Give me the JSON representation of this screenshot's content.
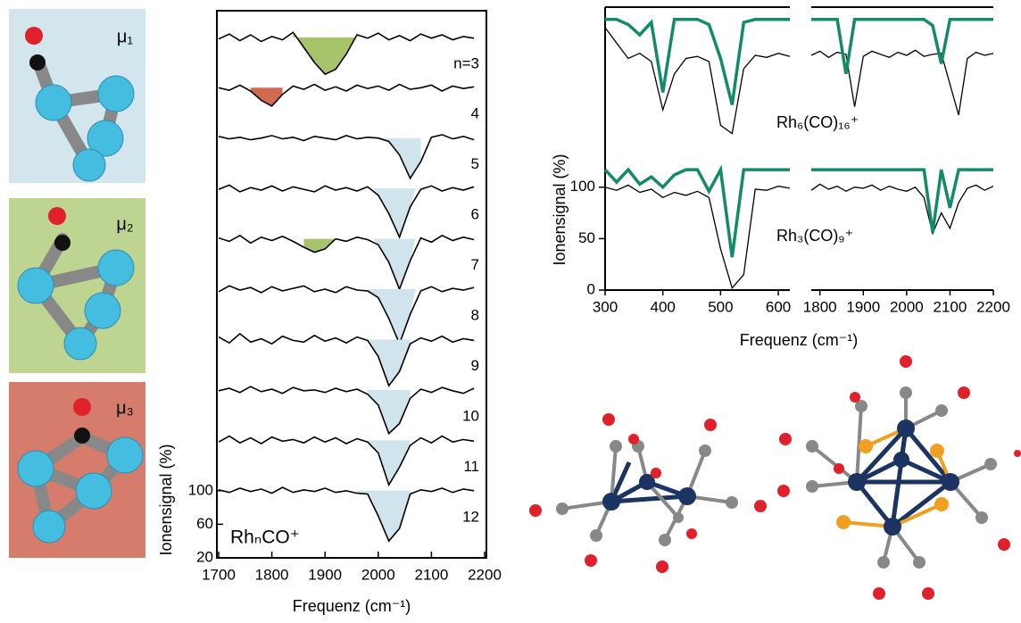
{
  "structures": [
    {
      "label": "μ₁",
      "color": "#d3e6ee"
    },
    {
      "label": "μ₂",
      "color": "#bed592"
    },
    {
      "label": "μ₃",
      "color": "#d67c6c"
    }
  ],
  "chart_data": [
    {
      "type": "line",
      "xlabel": "Frequenz (cm⁻¹)",
      "ylabel": "Ionensignal (%)",
      "annotation": "RhₙCO⁺",
      "xlim": [
        1700,
        2200
      ],
      "xticks": [
        1700,
        1800,
        1900,
        2000,
        2100,
        2200
      ],
      "ylim": [
        20,
        672
      ],
      "yticks": [
        20,
        60,
        100
      ],
      "x": [
        1700,
        1720,
        1740,
        1760,
        1780,
        1800,
        1820,
        1840,
        1860,
        1880,
        1900,
        1920,
        1940,
        1960,
        1980,
        2000,
        2020,
        2040,
        2060,
        2080,
        2100,
        2120,
        2140,
        2160,
        2180
      ],
      "series": [
        {
          "name": "n=3",
          "color": "#000000",
          "values": [
            98,
            104,
            96,
            103,
            95,
            101,
            97,
            106,
            88,
            70,
            56,
            62,
            80,
            103,
            99,
            105,
            97,
            102,
            96,
            104,
            99,
            103,
            97,
            101,
            99
          ],
          "highlights": [
            {
              "range": [
                1840,
                1960
              ],
              "color": "#a8c46a"
            }
          ]
        },
        {
          "name": "4",
          "color": "#000000",
          "values": [
            100,
            97,
            103,
            96,
            85,
            78,
            92,
            102,
            98,
            104,
            97,
            101,
            96,
            103,
            99,
            102,
            97,
            104,
            98,
            100,
            103,
            96,
            102,
            99,
            101
          ],
          "highlights": [
            {
              "range": [
                1760,
                1820
              ],
              "color": "#d06a50"
            }
          ]
        },
        {
          "name": "5",
          "color": "#000000",
          "values": [
            102,
            99,
            101,
            98,
            100,
            103,
            99,
            101,
            97,
            102,
            100,
            98,
            103,
            99,
            101,
            100,
            96,
            80,
            52,
            72,
            101,
            104,
            99,
            102,
            98
          ],
          "highlights": [
            {
              "range": [
                2000,
                2080
              ],
              "color": "#cfe4ec"
            }
          ]
        },
        {
          "name": "6",
          "color": "#000000",
          "values": [
            99,
            104,
            96,
            101,
            98,
            103,
            97,
            102,
            99,
            96,
            103,
            98,
            101,
            97,
            102,
            92,
            70,
            42,
            78,
            99,
            103,
            97,
            101,
            98,
            102
          ],
          "highlights": [
            {
              "range": [
                1990,
                2070
              ],
              "color": "#cfe4ec"
            }
          ]
        },
        {
          "name": "7",
          "color": "#000000",
          "values": [
            101,
            97,
            104,
            95,
            102,
            98,
            103,
            97,
            90,
            84,
            88,
            100,
            97,
            102,
            99,
            93,
            72,
            40,
            74,
            101,
            96,
            104,
            98,
            102,
            99
          ],
          "highlights": [
            {
              "range": [
                1860,
                1920
              ],
              "color": "#a8c46a"
            },
            {
              "range": [
                1990,
                2070
              ],
              "color": "#cfe4ec"
            }
          ]
        },
        {
          "name": "8",
          "color": "#000000",
          "values": [
            97,
            104,
            99,
            102,
            96,
            103,
            98,
            101,
            104,
            97,
            100,
            96,
            103,
            99,
            98,
            90,
            65,
            35,
            70,
            98,
            103,
            97,
            101,
            99,
            102
          ],
          "highlights": [
            {
              "range": [
                1980,
                2070
              ],
              "color": "#cfe4ec"
            }
          ]
        },
        {
          "name": "9",
          "color": "#000000",
          "values": [
            103,
            96,
            107,
            97,
            101,
            95,
            104,
            99,
            97,
            105,
            98,
            102,
            96,
            103,
            99,
            80,
            45,
            62,
            95,
            102,
            98,
            104,
            97,
            101,
            99
          ],
          "highlights": [
            {
              "range": [
                1980,
                2060
              ],
              "color": "#cfe4ec"
            }
          ]
        },
        {
          "name": "10",
          "color": "#000000",
          "values": [
            99,
            102,
            97,
            104,
            98,
            101,
            96,
            103,
            99,
            100,
            97,
            102,
            98,
            101,
            95,
            82,
            48,
            60,
            90,
            101,
            97,
            103,
            99,
            96,
            102
          ],
          "highlights": [
            {
              "range": [
                1980,
                2060
              ],
              "color": "#cfe4ec"
            }
          ]
        },
        {
          "name": "11",
          "color": "#000000",
          "values": [
            98,
            105,
            97,
            103,
            96,
            104,
            99,
            101,
            97,
            104,
            98,
            103,
            96,
            102,
            98,
            85,
            47,
            68,
            94,
            103,
            97,
            105,
            98,
            101,
            99
          ],
          "highlights": [
            {
              "range": [
                1980,
                2060
              ],
              "color": "#cfe4ec"
            }
          ]
        },
        {
          "name": "12",
          "color": "#000000",
          "values": [
            101,
            98,
            103,
            99,
            102,
            97,
            104,
            98,
            101,
            99,
            103,
            98,
            100,
            97,
            96,
            70,
            40,
            55,
            96,
            101,
            99,
            103,
            98,
            102,
            100
          ],
          "highlights": [
            {
              "range": [
                1960,
                2060
              ],
              "color": "#cfe4ec"
            }
          ]
        }
      ]
    },
    {
      "type": "line",
      "xlabel": "Frequenz (cm⁻¹)",
      "ylabel": "Ionensignal (%)",
      "ylim": [
        0,
        275
      ],
      "yticks": [
        0,
        50,
        100
      ],
      "panels": [
        {
          "xlim": [
            300,
            620
          ],
          "xticks": [
            300,
            400,
            500,
            600
          ]
        },
        {
          "xlim": [
            1780,
            2200
          ],
          "xticks": [
            1800,
            1900,
            2000,
            2100,
            2200
          ]
        }
      ],
      "x": [
        300,
        320,
        340,
        360,
        380,
        400,
        420,
        440,
        460,
        480,
        500,
        520,
        540,
        560,
        580,
        600,
        620,
        1780,
        1800,
        1820,
        1840,
        1860,
        1880,
        1900,
        1920,
        1940,
        1960,
        1980,
        2000,
        2020,
        2040,
        2060,
        2080,
        2100,
        2120,
        2140,
        2160,
        2180,
        2200
      ],
      "series": [
        {
          "name": "Rh₆(CO)₁₆⁺",
          "color": "#000000",
          "values": [
            125,
            110,
            95,
            100,
            92,
            45,
            80,
            95,
            97,
            92,
            30,
            22,
            85,
            98,
            96,
            100,
            97,
            98,
            102,
            96,
            101,
            99,
            48,
            97,
            102,
            99,
            96,
            101,
            98,
            103,
            97,
            99,
            100,
            70,
            40,
            95,
            101,
            98,
            100
          ]
        },
        {
          "color": "#138a6a",
          "values": [
            133,
            133,
            128,
            118,
            130,
            62,
            133,
            133,
            133,
            128,
            95,
            50,
            130,
            133,
            133,
            133,
            133,
            133,
            133,
            133,
            133,
            80,
            133,
            133,
            133,
            133,
            133,
            133,
            133,
            133,
            133,
            127,
            90,
            133,
            133,
            133,
            133,
            133,
            133
          ]
        },
        {
          "name": "Rh₃(CO)₉⁺",
          "color": "#000000",
          "values": [
            100,
            97,
            102,
            95,
            98,
            90,
            95,
            92,
            96,
            90,
            40,
            2,
            15,
            98,
            97,
            101,
            99,
            97,
            103,
            98,
            101,
            96,
            100,
            99,
            102,
            97,
            101,
            98,
            96,
            100,
            90,
            55,
            75,
            60,
            85,
            99,
            102,
            97,
            101
          ]
        },
        {
          "color": "#138a6a",
          "values": [
            117,
            105,
            117,
            103,
            110,
            100,
            112,
            117,
            117,
            96,
            117,
            32,
            117,
            117,
            117,
            117,
            117,
            117,
            117,
            117,
            117,
            117,
            117,
            117,
            117,
            117,
            117,
            117,
            117,
            117,
            117,
            56,
            117,
            80,
            117,
            117,
            117,
            117,
            117
          ]
        }
      ]
    }
  ]
}
